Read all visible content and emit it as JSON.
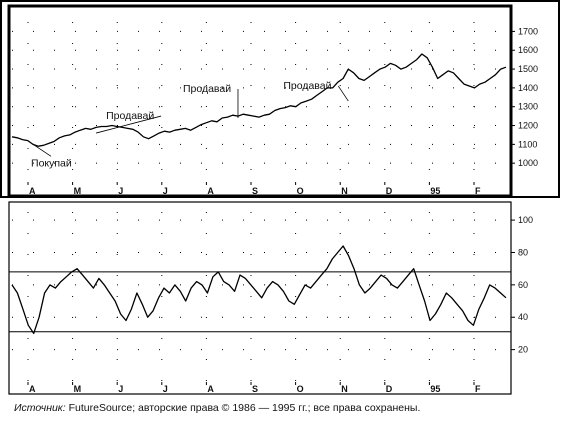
{
  "chart_data": [
    {
      "type": "line",
      "panel": "price",
      "x_ticks": [
        "A",
        "M",
        "J",
        "J",
        "A",
        "S",
        "O",
        "N",
        "D",
        "95",
        "F"
      ],
      "y_ticks": [
        1000,
        1100,
        1200,
        1300,
        1400,
        1500,
        1600,
        1700
      ],
      "ylim": [
        900,
        1750
      ],
      "grid": "dotted",
      "series": [
        {
          "values": [
            1140,
            1135,
            1125,
            1120,
            1100,
            1090,
            1095,
            1105,
            1115,
            1135,
            1145,
            1150,
            1165,
            1175,
            1185,
            1180,
            1190,
            1195,
            1195,
            1200,
            1195,
            1190,
            1185,
            1180,
            1165,
            1140,
            1130,
            1145,
            1160,
            1170,
            1165,
            1175,
            1180,
            1185,
            1175,
            1190,
            1205,
            1215,
            1225,
            1220,
            1240,
            1245,
            1255,
            1250,
            1260,
            1255,
            1250,
            1245,
            1255,
            1260,
            1280,
            1290,
            1295,
            1305,
            1300,
            1320,
            1330,
            1340,
            1360,
            1380,
            1400,
            1400,
            1430,
            1450,
            1500,
            1480,
            1450,
            1440,
            1460,
            1480,
            1500,
            1510,
            1530,
            1520,
            1500,
            1510,
            1530,
            1550,
            1580,
            1560,
            1510,
            1450,
            1470,
            1490,
            1480,
            1450,
            1420,
            1410,
            1400,
            1420,
            1430,
            1450,
            1470,
            1500,
            1510
          ]
        }
      ],
      "annotations": [
        {
          "label": "Продавай",
          "x": 16,
          "y": 1160
        },
        {
          "label": "Покупай",
          "x": 4,
          "y": 1100
        },
        {
          "label": "Продавай",
          "x": 43,
          "y": 1240
        },
        {
          "label": "Продавай",
          "x": 64,
          "y": 1330
        }
      ]
    },
    {
      "type": "line",
      "panel": "oscillator",
      "x_ticks": [
        "A",
        "M",
        "J",
        "J",
        "A",
        "S",
        "O",
        "N",
        "D",
        "95",
        "F"
      ],
      "y_ticks": [
        20,
        40,
        60,
        80,
        100
      ],
      "ylim": [
        0,
        105
      ],
      "grid": "dotted",
      "reference_lines": [
        68,
        31
      ],
      "series": [
        {
          "values": [
            60,
            55,
            45,
            35,
            30,
            40,
            55,
            60,
            58,
            62,
            65,
            68,
            70,
            66,
            62,
            58,
            64,
            60,
            55,
            50,
            42,
            38,
            45,
            55,
            48,
            40,
            44,
            52,
            58,
            55,
            60,
            56,
            50,
            58,
            62,
            60,
            55,
            65,
            68,
            62,
            60,
            56,
            66,
            64,
            60,
            56,
            52,
            58,
            62,
            60,
            56,
            50,
            48,
            54,
            60,
            58,
            62,
            66,
            70,
            76,
            80,
            84,
            78,
            70,
            60,
            55,
            58,
            62,
            66,
            64,
            60,
            58,
            62,
            66,
            70,
            60,
            50,
            38,
            42,
            48,
            55,
            52,
            48,
            44,
            38,
            35,
            45,
            52,
            60,
            58,
            55,
            52
          ]
        }
      ]
    }
  ],
  "source_label": "Источник:",
  "source_text": " FutureSource; авторские права © 1986 — 1995 гг.; все права сохранены."
}
